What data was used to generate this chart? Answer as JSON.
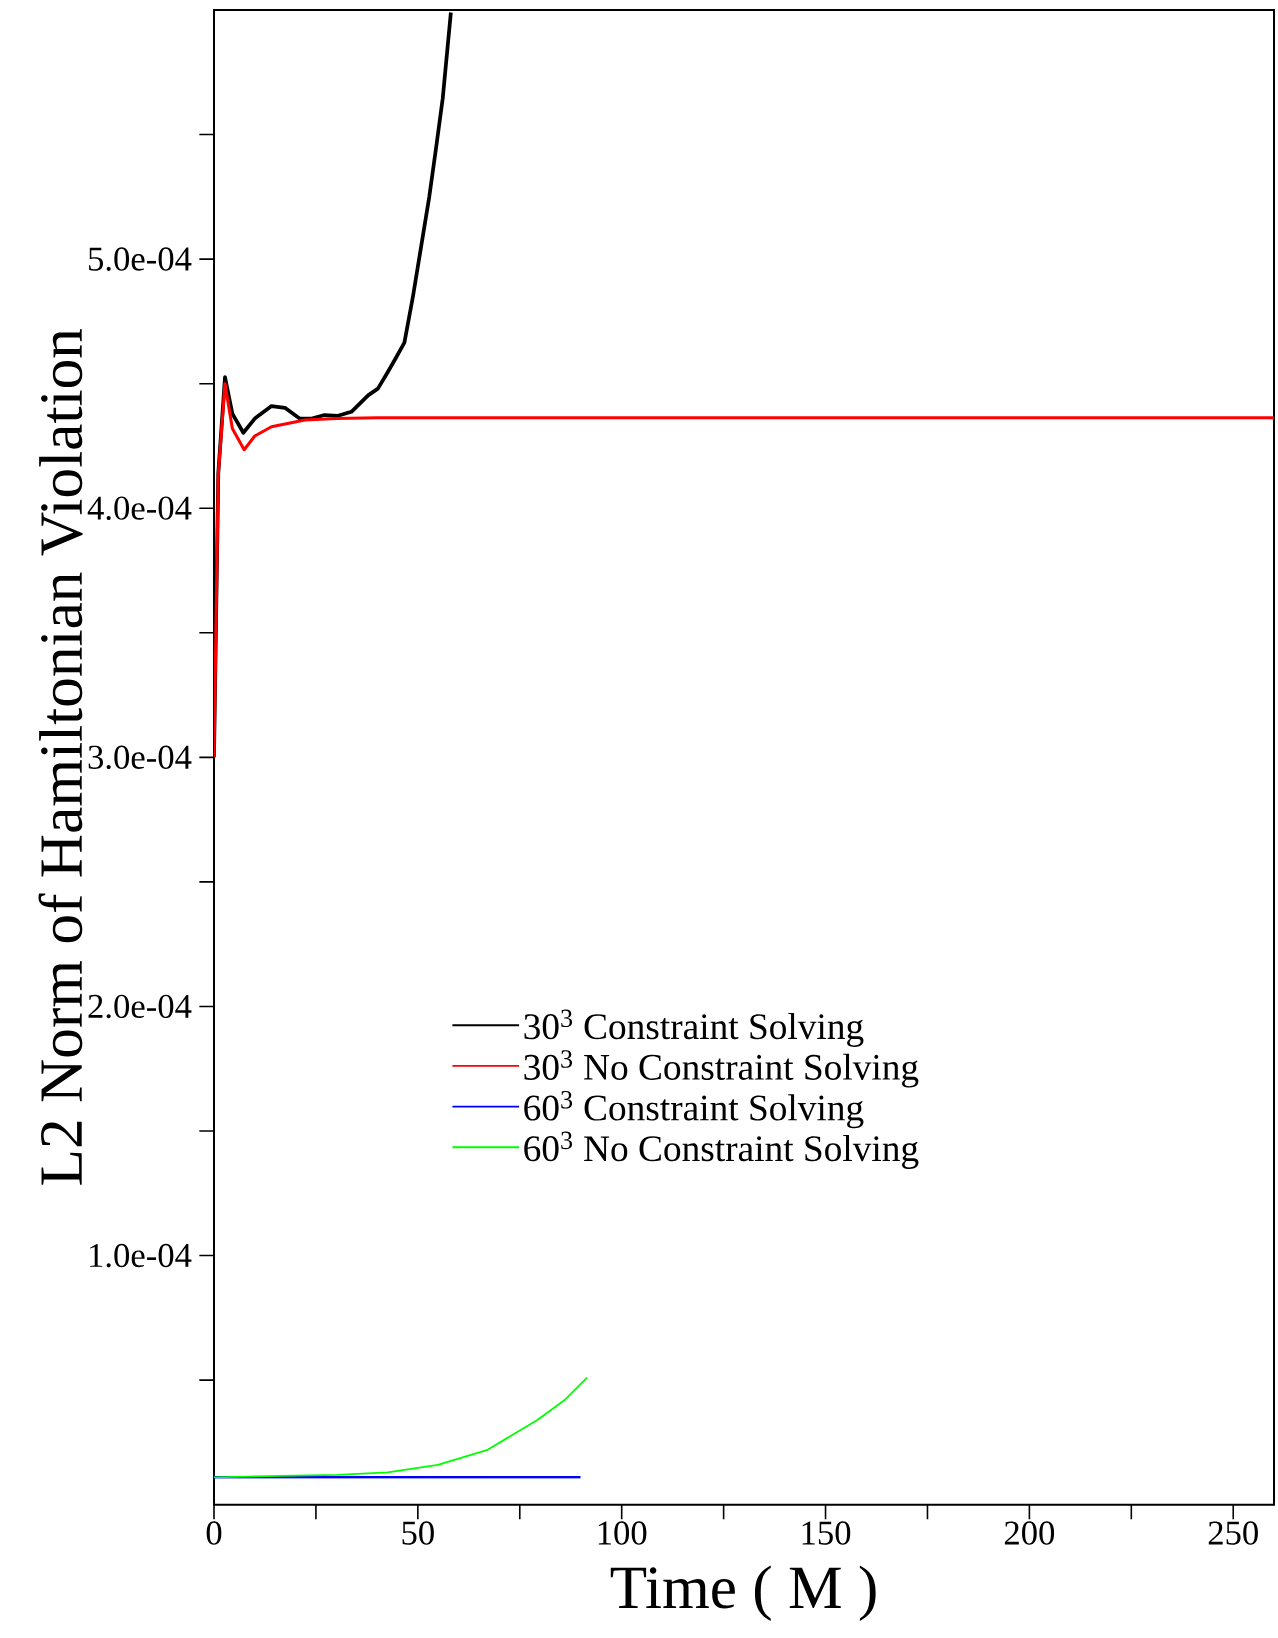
{
  "chart_data": {
    "type": "line",
    "xlabel": "Time ( M )",
    "ylabel": "L2 Norm of Hamiltonian Violation",
    "xlim": [
      0,
      260
    ],
    "ylim": [
      0,
      0.0006
    ],
    "xticks": [
      0,
      {
        "value": 25,
        "label": null
      },
      50,
      {
        "value": 75,
        "label": null
      },
      100,
      {
        "value": 125,
        "label": null
      },
      150,
      {
        "value": 175,
        "label": null
      },
      200,
      {
        "value": 225,
        "label": null
      },
      250
    ],
    "yticks": [
      {
        "value": 5e-05,
        "label": null
      },
      {
        "value": 0.0001,
        "label": "1.0e-04"
      },
      {
        "value": 0.00015,
        "label": null
      },
      {
        "value": 0.0002,
        "label": "2.0e-04"
      },
      {
        "value": 0.00025,
        "label": null
      },
      {
        "value": 0.0003,
        "label": "3.0e-04"
      },
      {
        "value": 0.00035,
        "label": null
      },
      {
        "value": 0.0004,
        "label": "4.0e-04"
      },
      {
        "value": 0.00045,
        "label": null
      },
      {
        "value": 0.0005,
        "label": "5.0e-04"
      },
      {
        "value": 0.00055,
        "label": null
      }
    ],
    "legend": "bottom",
    "grid": false,
    "marker": "none",
    "line_style": "solid",
    "series": [
      {
        "name": "30$^{3}$ Constraint Solving",
        "color": "#000000",
        "x": [
          0,
          1.05,
          2.7,
          4.5,
          7.2,
          10,
          14.1,
          17.4,
          21,
          24,
          27.1,
          30.4,
          33.7,
          37.8,
          40.2,
          42.6,
          44.5,
          46.7,
          48.8,
          50.8,
          52.8,
          54.5,
          56.1,
          58.1
        ],
        "values": [
          0.0003,
          0.000414,
          0.0004526,
          0.000438,
          0.0004303,
          0.000436,
          0.000441,
          0.0004403,
          0.000436,
          0.000436,
          0.0004374,
          0.0004371,
          0.0004387,
          0.0004453,
          0.000448,
          0.0004546,
          0.00046,
          0.0004665,
          0.000485,
          0.000505,
          0.000525,
          0.000545,
          0.0005645,
          0.000599
        ]
      },
      {
        "name": "30$^{3}$ No Constraint Solving",
        "color": "#ff0000",
        "x": [
          0,
          1.05,
          2.7,
          4.5,
          7.4,
          10,
          14.1,
          22.3,
          30,
          40,
          60,
          100,
          150,
          200,
          260
        ],
        "values": [
          0.0003,
          0.0004135,
          0.00045,
          0.000432,
          0.0004235,
          0.000429,
          0.0004327,
          0.0004354,
          0.000436,
          0.0004363,
          0.0004363,
          0.0004363,
          0.0004363,
          0.0004363,
          0.0004363
        ]
      },
      {
        "name": "60$^{3}$ Constraint Solving",
        "color": "#0000ff",
        "x": [
          0,
          30,
          60,
          89.9
        ],
        "values": [
          1.1e-05,
          1.1e-05,
          1.1e-05,
          1.1e-05
        ]
      },
      {
        "name": "60$^{3}$ No Constraint Solving",
        "color": "#00ff00",
        "x": [
          0,
          30.4,
          42.6,
          54.9,
          67.1,
          79.3,
          86,
          91.5
        ],
        "values": [
          1.1e-05,
          1.2e-05,
          1.3e-05,
          1.6e-05,
          2.2e-05,
          3.4e-05,
          4.2e-05,
          5.1e-05
        ]
      }
    ]
  }
}
